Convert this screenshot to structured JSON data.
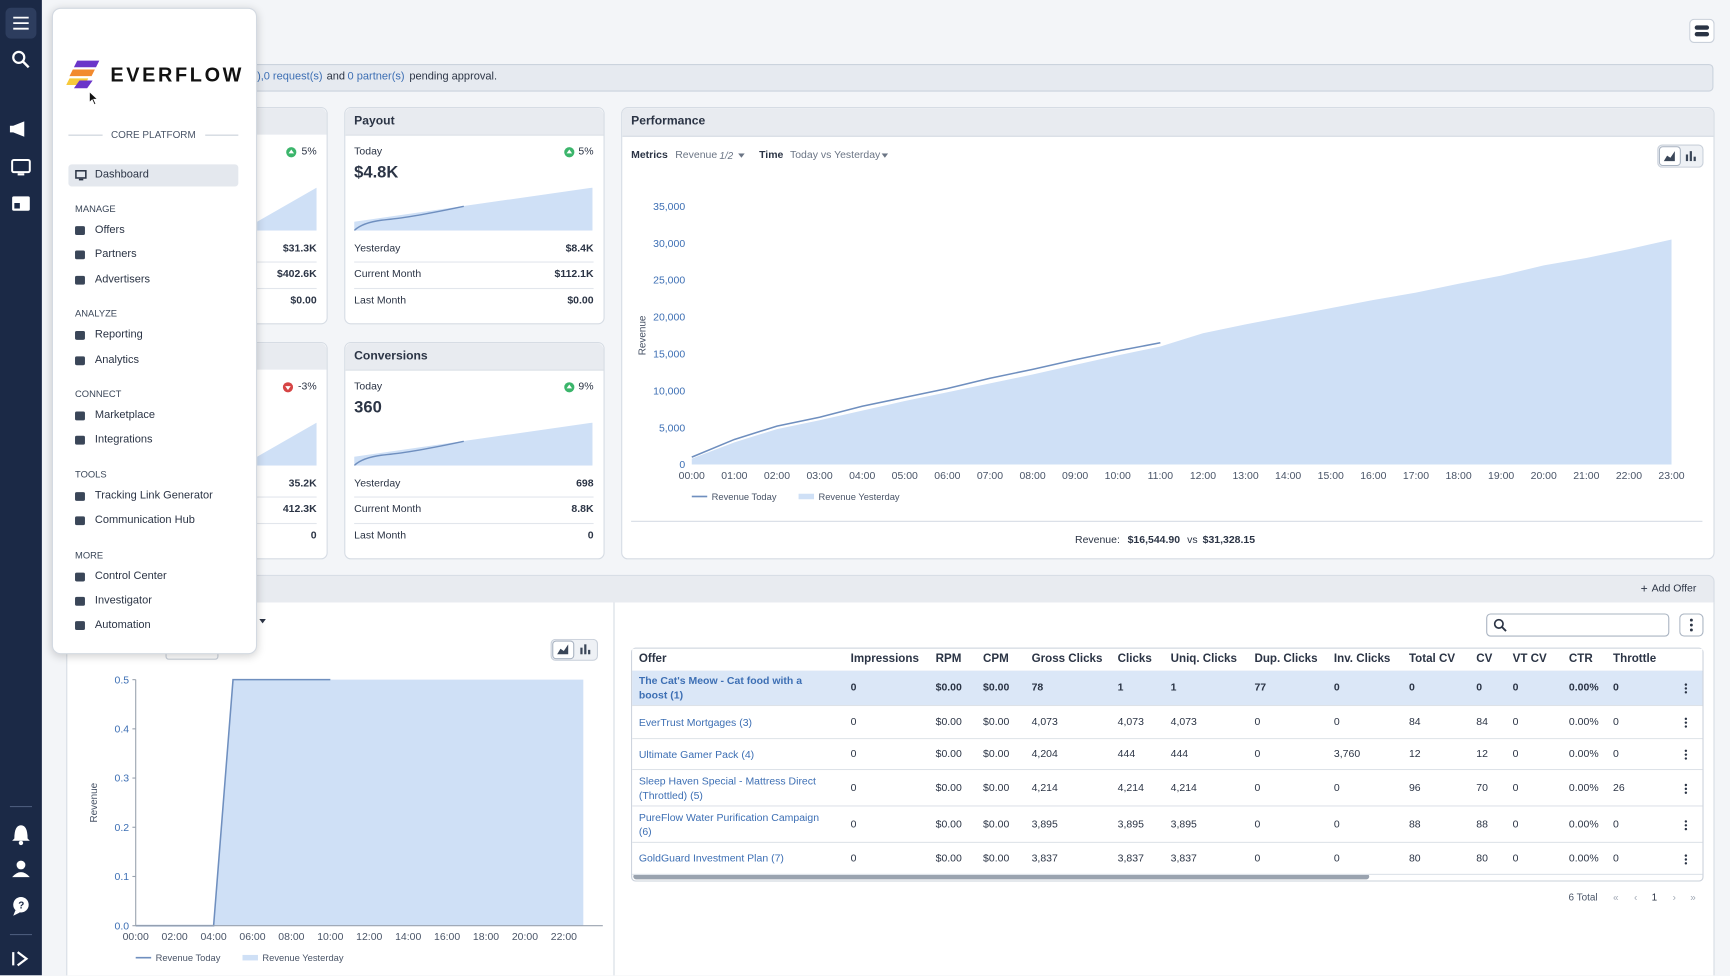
{
  "banner": {
    "prefix": "),",
    "requests": "0 request(s)",
    "and": "and",
    "partners": "0 partner(s)",
    "suffix": "pending approval."
  },
  "menu": {
    "brand": "EVERFLOW",
    "platform": "CORE PLATFORM",
    "active": "Dashboard",
    "sections": [
      {
        "title": "MANAGE",
        "items": [
          "Offers",
          "Partners",
          "Advertisers"
        ]
      },
      {
        "title": "ANALYZE",
        "items": [
          "Reporting",
          "Analytics"
        ]
      },
      {
        "title": "CONNECT",
        "items": [
          "Marketplace",
          "Integrations"
        ]
      },
      {
        "title": "TOOLS",
        "items": [
          "Tracking Link Generator",
          "Communication Hub"
        ]
      },
      {
        "title": "MORE",
        "items": [
          "Control Center",
          "Investigator",
          "Automation"
        ]
      }
    ]
  },
  "partial_cards": [
    {
      "change": "5%",
      "rows": [
        "$31.3K",
        "$402.6K",
        "$0.00"
      ]
    },
    {
      "change": "-3%",
      "rows": [
        "35.2K",
        "412.3K",
        "0"
      ]
    }
  ],
  "cards": [
    {
      "title": "Payout",
      "period": "Today",
      "change": "5%",
      "value": "$4.8K",
      "rows": [
        [
          "Yesterday",
          "$8.4K"
        ],
        [
          "Current Month",
          "$112.1K"
        ],
        [
          "Last Month",
          "$0.00"
        ]
      ]
    },
    {
      "title": "Conversions",
      "period": "Today",
      "change": "9%",
      "value": "360",
      "rows": [
        [
          "Yesterday",
          "698"
        ],
        [
          "Current Month",
          "8.8K"
        ],
        [
          "Last Month",
          "0"
        ]
      ]
    }
  ],
  "performance": {
    "title": "Performance",
    "metrics_label": "Metrics",
    "metric": "Revenue",
    "metric_count": "1/2",
    "time_label": "Time",
    "time": "Today vs Yesterday",
    "summary": {
      "label": "Revenue:",
      "today": "$16,544.90",
      "vs": "vs",
      "yesterday": "$31,328.15"
    }
  },
  "chart_data": [
    {
      "type": "line",
      "y_label": "Revenue",
      "categories": [
        "00:00",
        "01:00",
        "02:00",
        "03:00",
        "04:00",
        "05:00",
        "06:00",
        "07:00",
        "08:00",
        "09:00",
        "10:00",
        "11:00",
        "12:00",
        "13:00",
        "14:00",
        "15:00",
        "16:00",
        "17:00",
        "18:00",
        "19:00",
        "20:00",
        "21:00",
        "22:00",
        "23:00"
      ],
      "series": [
        {
          "name": "Revenue Today",
          "color": "#6f8fbf",
          "kind": "line",
          "values": [
            1000,
            3400,
            5200,
            6400,
            7900,
            9100,
            10300,
            11700,
            12900,
            14200,
            15400,
            16500,
            null,
            null,
            null,
            null,
            null,
            null,
            null,
            null,
            null,
            null,
            null,
            null
          ]
        },
        {
          "name": "Revenue Yesterday",
          "color": "#cfe0f6",
          "kind": "area",
          "values": [
            800,
            3000,
            4800,
            6000,
            7300,
            8600,
            9800,
            11000,
            12200,
            13500,
            14800,
            16000,
            17800,
            19000,
            20100,
            21200,
            22300,
            23300,
            24500,
            25600,
            27000,
            28000,
            29200,
            30500
          ]
        }
      ],
      "ylim": [
        0,
        35000
      ],
      "yticks": [
        0,
        {
          "value": 5000,
          "label": "5,000"
        },
        {
          "value": 10000,
          "label": "10,000"
        },
        {
          "value": 15000,
          "label": "15,000"
        },
        {
          "value": 20000,
          "label": "20,000"
        },
        {
          "value": 25000,
          "label": "25,000"
        },
        {
          "value": 30000,
          "label": "30,000"
        },
        {
          "value": 35000,
          "label": "35,000"
        }
      ],
      "grid": false,
      "axis_lines": false
    },
    {
      "type": "line",
      "y_label": "Revenue",
      "categories": [
        "00:00",
        null,
        "02:00",
        null,
        "04:00",
        null,
        "06:00",
        null,
        "08:00",
        null,
        "10:00",
        null,
        "12:00",
        null,
        "14:00",
        null,
        "16:00",
        null,
        "18:00",
        null,
        "20:00",
        null,
        "22:00",
        null
      ],
      "series": [
        {
          "name": "Revenue Today",
          "color": "#6f8fbf",
          "kind": "line",
          "values": [
            0,
            0,
            0,
            0,
            0,
            0.5,
            0.5,
            0.5,
            0.5,
            0.5,
            0.5,
            null,
            null,
            null,
            null,
            null,
            null,
            null,
            null,
            null,
            null,
            null,
            null,
            null
          ]
        },
        {
          "name": "Revenue Yesterday",
          "color": "#cfe0f6",
          "kind": "area",
          "values": [
            0,
            0,
            0,
            0,
            0,
            0.5,
            0.5,
            0.5,
            0.5,
            0.5,
            0.5,
            0.5,
            0.5,
            0.5,
            0.5,
            0.5,
            0.5,
            0.5,
            0.5,
            0.5,
            0.5,
            0.5,
            0.5,
            0.5
          ]
        }
      ],
      "ylim": [
        0,
        0.5
      ],
      "yticks": [
        {
          "value": 0,
          "label": "0.0"
        },
        0.1,
        0.2,
        0.3,
        0.4,
        0.5
      ],
      "grid": false,
      "axis_lines": true
    }
  ],
  "offers": {
    "add_offer": "Add Offer",
    "table": {
      "columns": [
        "Offer",
        "Impressions",
        "RPM",
        "CPM",
        "Gross Clicks",
        "Clicks",
        "Uniq. Clicks",
        "Dup. Clicks",
        "Inv. Clicks",
        "Total CV",
        "CV",
        "VT CV",
        "CTR",
        "Throttle"
      ],
      "rows": [
        [
          "The Cat's Meow - Cat food with a boost (1)",
          "0",
          "$0.00",
          "$0.00",
          "78",
          "1",
          "1",
          "77",
          "0",
          "0",
          "0",
          "0",
          "0.00%",
          "0"
        ],
        [
          "EverTrust Mortgages (3)",
          "0",
          "$0.00",
          "$0.00",
          "4,073",
          "4,073",
          "4,073",
          "0",
          "0",
          "84",
          "84",
          "0",
          "0.00%",
          "0"
        ],
        [
          "Ultimate Gamer Pack (4)",
          "0",
          "$0.00",
          "$0.00",
          "4,204",
          "444",
          "444",
          "0",
          "3,760",
          "12",
          "12",
          "0",
          "0.00%",
          "0"
        ],
        [
          "Sleep Haven Special - Mattress Direct (Throttled) (5)",
          "0",
          "$0.00",
          "$0.00",
          "4,214",
          "4,214",
          "4,214",
          "0",
          "0",
          "96",
          "70",
          "0",
          "0.00%",
          "26"
        ],
        [
          "PureFlow Water Purification Campaign (6)",
          "0",
          "$0.00",
          "$0.00",
          "3,895",
          "3,895",
          "3,895",
          "0",
          "0",
          "88",
          "88",
          "0",
          "0.00%",
          "0"
        ],
        [
          "GoldGuard Investment Plan (7)",
          "0",
          "$0.00",
          "$0.00",
          "3,837",
          "3,837",
          "3,837",
          "0",
          "0",
          "80",
          "80",
          "0",
          "0.00%",
          "0"
        ]
      ]
    },
    "footer": {
      "total": "6 Total",
      "page": "1"
    }
  }
}
